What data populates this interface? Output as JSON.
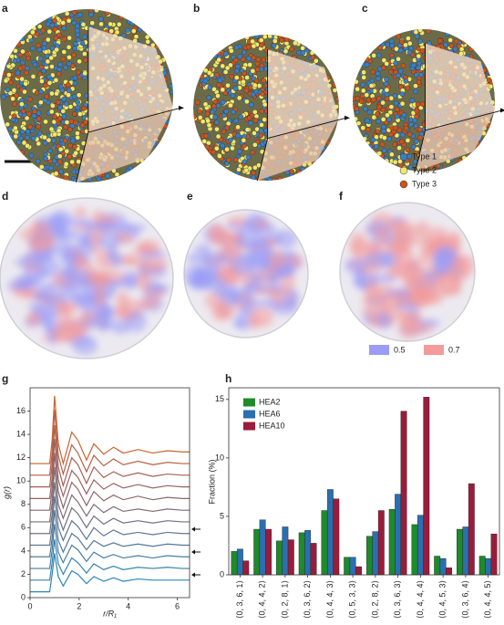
{
  "panel_labels": [
    "a",
    "b",
    "c",
    "d",
    "e",
    "f",
    "g",
    "h"
  ],
  "atom_legend": [
    {
      "label": "Type 1",
      "color": "#3a7fc4"
    },
    {
      "label": "Type 2",
      "color": "#f2e86a"
    },
    {
      "label": "Type 3",
      "color": "#c8551f"
    }
  ],
  "density_legend": [
    {
      "label": "0.5",
      "color": "#9a9cf5"
    },
    {
      "label": "0.7",
      "color": "#f39a9a"
    }
  ],
  "chart_data": [
    {
      "type": "line",
      "xlabel": "r/R₁",
      "ylabel": "g(r)",
      "x": [
        0,
        0.8,
        0.9,
        1.0,
        1.15,
        1.35,
        1.7,
        1.95,
        2.3,
        2.6,
        3.0,
        3.4,
        3.8,
        4.4,
        5.0,
        5.6,
        6.2,
        6.5
      ],
      "xlim": [
        0,
        6.5
      ],
      "xticks": [
        0,
        2,
        4,
        6
      ],
      "ylim": [
        0,
        18
      ],
      "yticks": [
        0,
        2,
        4,
        6,
        8,
        10,
        12,
        14,
        16
      ],
      "series": [
        {
          "color": "#2b87b8",
          "values": [
            0.5,
            0.5,
            2.0,
            3.8,
            1.8,
            1.0,
            2.3,
            2.0,
            1.2,
            1.8,
            1.4,
            1.7,
            1.4,
            1.6,
            1.5,
            1.5,
            1.5,
            1.5
          ]
        },
        {
          "color": "#3883ae",
          "values": [
            1.5,
            1.5,
            3.0,
            5.0,
            2.9,
            2.0,
            3.4,
            3.0,
            2.1,
            2.9,
            2.4,
            2.7,
            2.4,
            2.6,
            2.5,
            2.6,
            2.5,
            2.5
          ]
        },
        {
          "color": "#467ea3",
          "values": [
            2.5,
            2.5,
            4.1,
            6.3,
            3.9,
            3.0,
            4.5,
            4.1,
            3.1,
            3.9,
            3.4,
            3.7,
            3.4,
            3.6,
            3.4,
            3.6,
            3.5,
            3.5
          ]
        },
        {
          "color": "#547998",
          "values": [
            3.5,
            3.5,
            5.1,
            7.5,
            4.9,
            3.9,
            5.5,
            5.1,
            4.1,
            4.9,
            4.4,
            4.7,
            4.4,
            4.6,
            4.4,
            4.6,
            4.5,
            4.5
          ]
        },
        {
          "color": "#62758d",
          "values": [
            4.5,
            4.5,
            6.1,
            8.7,
            6.0,
            4.9,
            6.6,
            6.1,
            5.0,
            6.0,
            5.3,
            5.8,
            5.4,
            5.6,
            5.4,
            5.6,
            5.5,
            5.5
          ]
        },
        {
          "color": "#707182",
          "values": [
            5.5,
            5.5,
            7.2,
            9.9,
            7.0,
            5.8,
            7.7,
            7.2,
            6.0,
            7.0,
            6.3,
            6.8,
            6.4,
            6.6,
            6.4,
            6.6,
            6.5,
            6.5
          ]
        },
        {
          "color": "#7e6c77",
          "values": [
            6.5,
            6.5,
            8.2,
            11.2,
            8.0,
            6.8,
            8.8,
            8.2,
            7.0,
            8.0,
            7.3,
            7.8,
            7.4,
            7.6,
            7.4,
            7.6,
            7.5,
            7.5
          ]
        },
        {
          "color": "#8c686c",
          "values": [
            7.5,
            7.5,
            9.3,
            12.4,
            9.1,
            7.7,
            9.9,
            9.3,
            7.9,
            9.1,
            8.3,
            8.8,
            8.4,
            8.7,
            8.4,
            8.6,
            8.5,
            8.5
          ]
        },
        {
          "color": "#9a6361",
          "values": [
            8.5,
            8.5,
            10.3,
            13.6,
            10.1,
            8.7,
            10.9,
            10.3,
            8.9,
            10.1,
            9.3,
            9.8,
            9.4,
            9.7,
            9.4,
            9.6,
            9.5,
            9.5
          ]
        },
        {
          "color": "#a85f56",
          "values": [
            9.5,
            9.5,
            11.4,
            14.8,
            11.2,
            9.6,
            12.0,
            11.4,
            9.8,
            11.2,
            10.3,
            10.8,
            10.4,
            10.7,
            10.4,
            10.6,
            10.5,
            10.5
          ]
        },
        {
          "color": "#b65f45",
          "values": [
            10.5,
            10.5,
            12.4,
            16.1,
            12.2,
            10.6,
            13.1,
            12.4,
            10.8,
            12.2,
            11.3,
            11.9,
            11.4,
            11.7,
            11.4,
            11.6,
            11.5,
            11.5
          ]
        },
        {
          "color": "#c8642f",
          "values": [
            11.5,
            11.5,
            13.5,
            17.3,
            13.2,
            11.5,
            14.2,
            13.5,
            11.8,
            13.2,
            12.3,
            12.9,
            12.4,
            12.7,
            12.4,
            12.6,
            12.5,
            12.5
          ]
        }
      ]
    },
    {
      "type": "bar",
      "ylabel": "Fraction (%)",
      "legend": "upper left",
      "categories": [
        "⟨0, 3, 6, 1⟩",
        "⟨0, 4, 4, 2⟩",
        "⟨0, 2, 8, 1⟩",
        "⟨0, 3, 6, 2⟩",
        "⟨0, 4, 4, 3⟩",
        "⟨0, 5, 3, 3⟩",
        "⟨0, 2, 8, 2⟩",
        "⟨0, 3, 6, 3⟩",
        "⟨0, 4, 4, 4⟩",
        "⟨0, 4, 5, 3⟩",
        "⟨0, 3, 6, 4⟩",
        "⟨0, 4, 4, 5⟩"
      ],
      "ylim": [
        0,
        16
      ],
      "yticks": [
        0,
        5,
        10,
        15
      ],
      "series": [
        {
          "name": "HEA2",
          "color": "#1e8a2a",
          "values": [
            2.0,
            3.9,
            2.9,
            3.6,
            5.5,
            1.5,
            3.3,
            5.6,
            4.3,
            1.6,
            3.9,
            1.6
          ]
        },
        {
          "name": "HEA6",
          "color": "#2a6fb0",
          "values": [
            2.2,
            4.7,
            4.1,
            3.8,
            7.3,
            1.5,
            3.7,
            6.9,
            5.1,
            1.4,
            4.1,
            1.4
          ]
        },
        {
          "name": "HEA10",
          "color": "#9b1c3a",
          "values": [
            1.2,
            3.9,
            3.0,
            2.7,
            6.5,
            0.7,
            5.5,
            14.0,
            15.2,
            0.6,
            7.8,
            3.5
          ]
        }
      ]
    }
  ]
}
